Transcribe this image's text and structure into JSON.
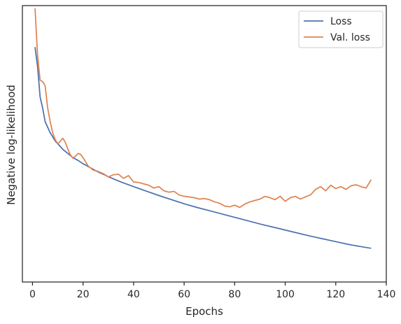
{
  "chart_data": {
    "type": "line",
    "xlabel": "Epochs",
    "ylabel": "Negative log-likelihood",
    "xlim": [
      -4,
      140
    ],
    "ylim": [
      0,
      1
    ],
    "x_ticks": [
      0,
      20,
      40,
      60,
      80,
      100,
      120,
      140
    ],
    "y_ticks_shown": false,
    "legend": {
      "position": "top-right"
    },
    "series": [
      {
        "name": "Loss",
        "color": "#4c72b0",
        "points": [
          [
            1,
            0.85
          ],
          [
            2,
            0.78
          ],
          [
            3,
            0.67
          ],
          [
            4,
            0.63
          ],
          [
            5,
            0.58
          ],
          [
            6,
            0.56
          ],
          [
            7,
            0.54
          ],
          [
            8,
            0.525
          ],
          [
            9,
            0.51
          ],
          [
            10,
            0.5
          ],
          [
            12,
            0.48
          ],
          [
            14,
            0.465
          ],
          [
            16,
            0.45
          ],
          [
            18,
            0.44
          ],
          [
            20,
            0.428
          ],
          [
            22,
            0.418
          ],
          [
            24,
            0.408
          ],
          [
            26,
            0.398
          ],
          [
            28,
            0.39
          ],
          [
            30,
            0.381
          ],
          [
            35,
            0.362
          ],
          [
            40,
            0.345
          ],
          [
            45,
            0.329
          ],
          [
            50,
            0.313
          ],
          [
            55,
            0.298
          ],
          [
            60,
            0.283
          ],
          [
            65,
            0.27
          ],
          [
            70,
            0.258
          ],
          [
            75,
            0.246
          ],
          [
            80,
            0.234
          ],
          [
            85,
            0.222
          ],
          [
            90,
            0.21
          ],
          [
            95,
            0.199
          ],
          [
            100,
            0.188
          ],
          [
            105,
            0.177
          ],
          [
            110,
            0.166
          ],
          [
            115,
            0.156
          ],
          [
            120,
            0.146
          ],
          [
            125,
            0.136
          ],
          [
            130,
            0.128
          ],
          [
            134,
            0.122
          ]
        ]
      },
      {
        "name": "Val. loss",
        "color": "#dd8452",
        "points": [
          [
            1,
            0.99
          ],
          [
            2,
            0.82
          ],
          [
            3,
            0.73
          ],
          [
            4,
            0.725
          ],
          [
            5,
            0.71
          ],
          [
            6,
            0.63
          ],
          [
            7,
            0.58
          ],
          [
            8,
            0.54
          ],
          [
            9,
            0.515
          ],
          [
            10,
            0.5
          ],
          [
            11,
            0.51
          ],
          [
            12,
            0.52
          ],
          [
            13,
            0.505
          ],
          [
            14,
            0.48
          ],
          [
            15,
            0.46
          ],
          [
            16,
            0.448
          ],
          [
            17,
            0.455
          ],
          [
            18,
            0.465
          ],
          [
            19,
            0.462
          ],
          [
            20,
            0.45
          ],
          [
            22,
            0.42
          ],
          [
            24,
            0.405
          ],
          [
            26,
            0.4
          ],
          [
            28,
            0.392
          ],
          [
            30,
            0.38
          ],
          [
            32,
            0.388
          ],
          [
            34,
            0.39
          ],
          [
            36,
            0.375
          ],
          [
            38,
            0.385
          ],
          [
            40,
            0.362
          ],
          [
            42,
            0.36
          ],
          [
            44,
            0.355
          ],
          [
            46,
            0.35
          ],
          [
            48,
            0.34
          ],
          [
            50,
            0.345
          ],
          [
            52,
            0.33
          ],
          [
            54,
            0.325
          ],
          [
            56,
            0.328
          ],
          [
            58,
            0.315
          ],
          [
            60,
            0.31
          ],
          [
            62,
            0.308
          ],
          [
            64,
            0.305
          ],
          [
            66,
            0.3
          ],
          [
            68,
            0.302
          ],
          [
            70,
            0.298
          ],
          [
            72,
            0.29
          ],
          [
            74,
            0.285
          ],
          [
            76,
            0.275
          ],
          [
            78,
            0.272
          ],
          [
            80,
            0.278
          ],
          [
            82,
            0.27
          ],
          [
            84,
            0.282
          ],
          [
            86,
            0.29
          ],
          [
            88,
            0.295
          ],
          [
            90,
            0.3
          ],
          [
            92,
            0.31
          ],
          [
            94,
            0.305
          ],
          [
            96,
            0.298
          ],
          [
            98,
            0.31
          ],
          [
            100,
            0.292
          ],
          [
            102,
            0.305
          ],
          [
            104,
            0.31
          ],
          [
            106,
            0.3
          ],
          [
            108,
            0.308
          ],
          [
            110,
            0.315
          ],
          [
            112,
            0.335
          ],
          [
            114,
            0.345
          ],
          [
            116,
            0.33
          ],
          [
            118,
            0.35
          ],
          [
            120,
            0.338
          ],
          [
            122,
            0.345
          ],
          [
            124,
            0.335
          ],
          [
            126,
            0.348
          ],
          [
            128,
            0.352
          ],
          [
            130,
            0.345
          ],
          [
            132,
            0.34
          ],
          [
            134,
            0.37
          ]
        ]
      }
    ]
  }
}
